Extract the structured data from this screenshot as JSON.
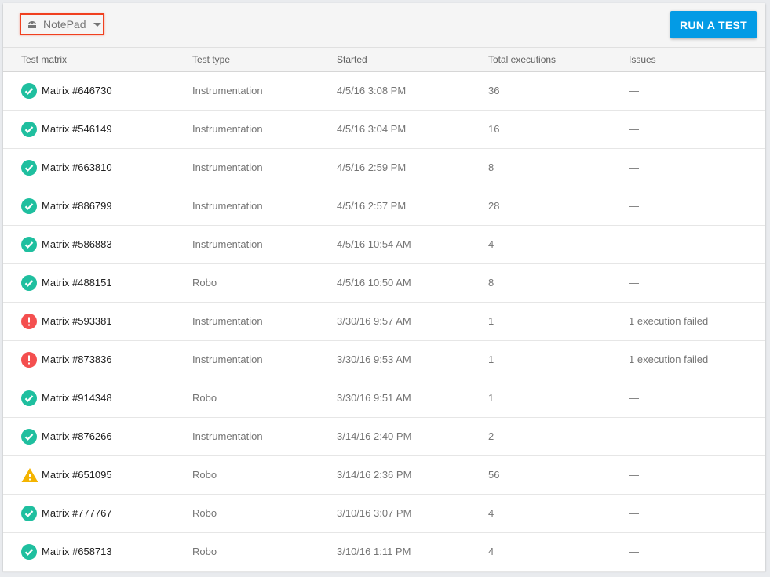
{
  "toolbar": {
    "app_name": "NotePad",
    "app_icon": "android-icon",
    "run_button": "RUN A TEST"
  },
  "columns": [
    "Test matrix",
    "Test type",
    "Started",
    "Total executions",
    "Issues"
  ],
  "colors": {
    "success": "#1fbf9f",
    "error": "#f44f4f",
    "warning": "#f4b400",
    "accent": "#039be5"
  },
  "rows": [
    {
      "status": "success",
      "name": "Matrix #646730",
      "type": "Instrumentation",
      "started": "4/5/16 3:08 PM",
      "executions": "36",
      "issues": "—"
    },
    {
      "status": "success",
      "name": "Matrix #546149",
      "type": "Instrumentation",
      "started": "4/5/16 3:04 PM",
      "executions": "16",
      "issues": "—"
    },
    {
      "status": "success",
      "name": "Matrix #663810",
      "type": "Instrumentation",
      "started": "4/5/16 2:59 PM",
      "executions": "8",
      "issues": "—"
    },
    {
      "status": "success",
      "name": "Matrix #886799",
      "type": "Instrumentation",
      "started": "4/5/16 2:57 PM",
      "executions": "28",
      "issues": "—"
    },
    {
      "status": "success",
      "name": "Matrix #586883",
      "type": "Instrumentation",
      "started": "4/5/16 10:54 AM",
      "executions": "4",
      "issues": "—"
    },
    {
      "status": "success",
      "name": "Matrix #488151",
      "type": "Robo",
      "started": "4/5/16 10:50 AM",
      "executions": "8",
      "issues": "—"
    },
    {
      "status": "error",
      "name": "Matrix #593381",
      "type": "Instrumentation",
      "started": "3/30/16 9:57 AM",
      "executions": "1",
      "issues": "1 execution failed"
    },
    {
      "status": "error",
      "name": "Matrix #873836",
      "type": "Instrumentation",
      "started": "3/30/16 9:53 AM",
      "executions": "1",
      "issues": "1 execution failed"
    },
    {
      "status": "success",
      "name": "Matrix #914348",
      "type": "Robo",
      "started": "3/30/16 9:51 AM",
      "executions": "1",
      "issues": "—"
    },
    {
      "status": "success",
      "name": "Matrix #876266",
      "type": "Instrumentation",
      "started": "3/14/16 2:40 PM",
      "executions": "2",
      "issues": "—"
    },
    {
      "status": "warning",
      "name": "Matrix #651095",
      "type": "Robo",
      "started": "3/14/16 2:36 PM",
      "executions": "56",
      "issues": "—"
    },
    {
      "status": "success",
      "name": "Matrix #777767",
      "type": "Robo",
      "started": "3/10/16 3:07 PM",
      "executions": "4",
      "issues": "—"
    },
    {
      "status": "success",
      "name": "Matrix #658713",
      "type": "Robo",
      "started": "3/10/16 1:11 PM",
      "executions": "4",
      "issues": "—"
    }
  ]
}
